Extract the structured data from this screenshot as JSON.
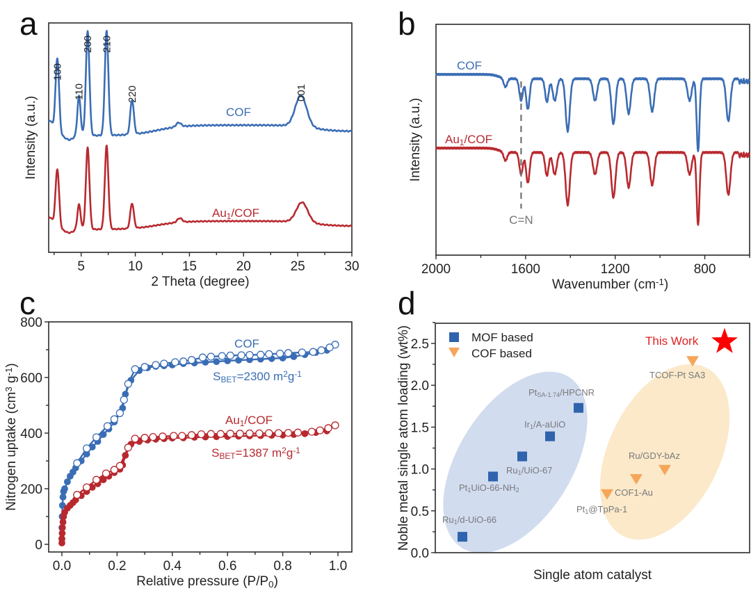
{
  "figure": {
    "panel_letters": [
      "a",
      "b",
      "c",
      "d"
    ],
    "colors": {
      "cof_blue": "#3a6db5",
      "au_red": "#b8292f",
      "mof_square": "#2f63ad",
      "cof_triangle": "#f5a65b",
      "mof_ellipse": "#c9d6ec",
      "cof_ellipse": "#fbe7c4",
      "star": "#ff0000",
      "cn_line": "#707070"
    }
  },
  "chart_data": [
    {
      "panel": "a",
      "type": "line",
      "title": "",
      "xlabel": "2 Theta (degree)",
      "ylabel": "Intensity (a.u.)",
      "xlim": [
        2,
        30
      ],
      "xticks": [
        5,
        10,
        15,
        20,
        25,
        30
      ],
      "xtick_labels": [
        "5",
        "10",
        "15",
        "20",
        "25",
        "30"
      ],
      "y_ticks_shown": false,
      "series": [
        {
          "name": "COF",
          "label": "COF",
          "baseline": 0.55,
          "peaks": [
            {
              "x": 2.8,
              "height": 0.72,
              "width": 0.22
            },
            {
              "x": 4.8,
              "height": 0.38,
              "width": 0.2
            },
            {
              "x": 5.6,
              "height": 1.0,
              "width": 0.22
            },
            {
              "x": 7.35,
              "height": 1.0,
              "width": 0.22
            },
            {
              "x": 9.7,
              "height": 0.33,
              "width": 0.22
            },
            {
              "x": 14.0,
              "height": 0.04,
              "width": 0.3
            },
            {
              "x": 25.3,
              "height": 0.3,
              "width": 0.7
            }
          ]
        },
        {
          "name": "Au1/COF",
          "label": "Au₁/COF",
          "baseline": 0.08,
          "peaks": [
            {
              "x": 2.8,
              "height": 0.7,
              "width": 0.22
            },
            {
              "x": 4.8,
              "height": 0.3,
              "width": 0.2
            },
            {
              "x": 5.6,
              "height": 0.98,
              "width": 0.22
            },
            {
              "x": 7.35,
              "height": 1.0,
              "width": 0.22
            },
            {
              "x": 9.7,
              "height": 0.3,
              "width": 0.22
            },
            {
              "x": 14.1,
              "height": 0.05,
              "width": 0.3
            },
            {
              "x": 25.4,
              "height": 0.24,
              "width": 0.7
            }
          ]
        }
      ],
      "annotations": [
        {
          "text": "100",
          "x": 2.8
        },
        {
          "text": "110",
          "x": 4.8
        },
        {
          "text": "200",
          "x": 5.6
        },
        {
          "text": "210",
          "x": 7.35
        },
        {
          "text": "220",
          "x": 9.7
        },
        {
          "text": "001",
          "x": 25.3
        }
      ]
    },
    {
      "panel": "b",
      "type": "line",
      "title": "",
      "xlabel": "Wavenumber (cm⁻¹)",
      "ylabel": "Intensity (a.u.)",
      "xlim": [
        2000,
        600
      ],
      "xticks": [
        2000,
        1600,
        1200,
        800
      ],
      "xtick_labels": [
        "2000",
        "1600",
        "1200",
        "800"
      ],
      "y_ticks_shown": false,
      "series": [
        {
          "name": "COF",
          "label": "COF"
        },
        {
          "name": "Au1/COF",
          "label": "Au₁/COF"
        }
      ],
      "absorption_bands": [
        {
          "x": 1690,
          "depth": 0.12
        },
        {
          "x": 1620,
          "depth": 0.3
        },
        {
          "x": 1590,
          "depth": 0.42
        },
        {
          "x": 1505,
          "depth": 0.32
        },
        {
          "x": 1470,
          "depth": 0.3
        },
        {
          "x": 1412,
          "depth": 0.72
        },
        {
          "x": 1290,
          "depth": 0.3
        },
        {
          "x": 1208,
          "depth": 0.62
        },
        {
          "x": 1140,
          "depth": 0.48
        },
        {
          "x": 1035,
          "depth": 0.45
        },
        {
          "x": 868,
          "depth": 0.3
        },
        {
          "x": 830,
          "depth": 1.0
        },
        {
          "x": 695,
          "depth": 0.58
        }
      ],
      "annotations": [
        {
          "text": "C=N",
          "x": 1620,
          "style": "dashed vertical line"
        }
      ]
    },
    {
      "panel": "c",
      "type": "scatter",
      "title": "",
      "xlabel": "Relative pressure (P/P₀)",
      "ylabel": "Nitrogen uptake (cm³ g⁻¹)",
      "xlim": [
        -0.05,
        1.05
      ],
      "ylim": [
        -25,
        800
      ],
      "xticks": [
        0.0,
        0.2,
        0.4,
        0.6,
        0.8,
        1.0
      ],
      "xtick_labels": [
        "0.0",
        "0.2",
        "0.4",
        "0.6",
        "0.8",
        "1.0"
      ],
      "yticks": [
        0,
        200,
        400,
        600,
        800
      ],
      "ytick_labels": [
        "0",
        "200",
        "400",
        "600",
        "800"
      ],
      "series": [
        {
          "name": "COF adsorption",
          "marker": "filled-circle",
          "x": [
            0.0,
            0.0,
            0.001,
            0.002,
            0.004,
            0.006,
            0.01,
            0.02,
            0.03,
            0.04,
            0.05,
            0.07,
            0.09,
            0.11,
            0.13,
            0.15,
            0.17,
            0.19,
            0.21,
            0.22,
            0.23,
            0.25,
            0.28,
            0.31,
            0.34,
            0.37,
            0.4,
            0.44,
            0.48,
            0.52,
            0.56,
            0.6,
            0.64,
            0.68,
            0.72,
            0.76,
            0.8,
            0.84,
            0.88,
            0.92,
            0.96
          ],
          "y": [
            20,
            60,
            100,
            140,
            170,
            190,
            200,
            225,
            245,
            260,
            275,
            300,
            325,
            350,
            370,
            395,
            415,
            440,
            470,
            490,
            540,
            590,
            625,
            635,
            640,
            642,
            645,
            650,
            652,
            655,
            657,
            660,
            662,
            664,
            666,
            668,
            670,
            675,
            682,
            690,
            698
          ]
        },
        {
          "name": "COF desorption",
          "marker": "open-circle",
          "x": [
            0.99,
            0.97,
            0.94,
            0.91,
            0.87,
            0.82,
            0.79,
            0.75,
            0.72,
            0.68,
            0.65,
            0.61,
            0.58,
            0.54,
            0.51,
            0.47,
            0.44,
            0.41,
            0.37,
            0.34,
            0.3,
            0.265,
            0.24,
            0.225,
            0.21,
            0.19,
            0.165,
            0.125,
            0.09,
            0.055
          ],
          "y": [
            718,
            708,
            698,
            692,
            690,
            688,
            686,
            684,
            682,
            681,
            680,
            679,
            677,
            675,
            672,
            663,
            658,
            655,
            650,
            645,
            638,
            630,
            577,
            520,
            472,
            450,
            425,
            385,
            345,
            292
          ]
        },
        {
          "name": "Au1/COF adsorption",
          "marker": "filled-circle",
          "x": [
            0.0,
            0.0,
            0.001,
            0.002,
            0.004,
            0.006,
            0.01,
            0.02,
            0.03,
            0.04,
            0.05,
            0.07,
            0.09,
            0.11,
            0.13,
            0.15,
            0.17,
            0.19,
            0.21,
            0.22,
            0.23,
            0.25,
            0.28,
            0.31,
            0.34,
            0.37,
            0.4,
            0.44,
            0.48,
            0.52,
            0.56,
            0.6,
            0.64,
            0.68,
            0.72,
            0.76,
            0.8,
            0.84,
            0.88,
            0.92,
            0.96
          ],
          "y": [
            5,
            20,
            40,
            60,
            80,
            100,
            115,
            130,
            140,
            150,
            160,
            175,
            190,
            205,
            218,
            232,
            245,
            258,
            270,
            285,
            320,
            360,
            370,
            375,
            378,
            380,
            382,
            383,
            385,
            386,
            387,
            388,
            389,
            390,
            391,
            392,
            393,
            395,
            398,
            402,
            408
          ]
        },
        {
          "name": "Au1/COF desorption",
          "marker": "open-circle",
          "x": [
            0.99,
            0.965,
            0.935,
            0.905,
            0.855,
            0.82,
            0.785,
            0.75,
            0.715,
            0.68,
            0.645,
            0.61,
            0.575,
            0.54,
            0.505,
            0.47,
            0.435,
            0.405,
            0.365,
            0.33,
            0.3,
            0.265,
            0.24,
            0.21,
            0.19,
            0.16,
            0.125,
            0.09,
            0.055
          ],
          "y": [
            428,
            418,
            410,
            405,
            402,
            401,
            400,
            400,
            399,
            399,
            398,
            398,
            397,
            397,
            396,
            393,
            390,
            390,
            388,
            386,
            383,
            380,
            348,
            282,
            268,
            255,
            232,
            205,
            178
          ]
        }
      ],
      "annotations": [
        {
          "text": "COF",
          "color": "blue"
        },
        {
          "text": "S_BET=2300 m²g⁻¹",
          "color": "blue"
        },
        {
          "text": "Au₁/COF",
          "color": "red"
        },
        {
          "text": "S_BET=1387 m²g⁻¹",
          "color": "red"
        }
      ]
    },
    {
      "panel": "d",
      "type": "scatter",
      "title": "",
      "xlabel": "Single atom catalyst",
      "ylabel": "Noble metal single atom loading (wt%)",
      "ylim": [
        0.0,
        2.75
      ],
      "xlim": [
        0,
        11
      ],
      "yticks": [
        0.0,
        0.5,
        1.0,
        1.5,
        2.0,
        2.5
      ],
      "ytick_labels": [
        "0.0",
        "0.5",
        "1.0",
        "1.5",
        "2.0",
        "2.5"
      ],
      "x_ticks_shown": false,
      "legend": {
        "placement": "top-left",
        "entries": [
          {
            "label": "MOF based",
            "marker": "square"
          },
          {
            "label": "COF based",
            "marker": "down-triangle"
          }
        ]
      },
      "series": [
        {
          "name": "MOF based",
          "marker": "square",
          "points": [
            {
              "x": 1,
              "y": 0.19,
              "label": "Ru₁/d-UiO-66"
            },
            {
              "x": 2,
              "y": 0.91,
              "label": "Pt₁UiO-66-NH₂"
            },
            {
              "x": 3,
              "y": 1.15,
              "label": "Ru₁/UiO-67"
            },
            {
              "x": 4,
              "y": 1.39,
              "label": "Ir₁/A-aUiO"
            },
            {
              "x": 5,
              "y": 1.73,
              "label": "Pt_SA-1.74/HPCNR"
            }
          ]
        },
        {
          "name": "COF based",
          "marker": "down-triangle",
          "points": [
            {
              "x": 6,
              "y": 0.7,
              "label": "Pt₁@TpPa-1"
            },
            {
              "x": 7,
              "y": 0.88,
              "label": "COF1-Au"
            },
            {
              "x": 8,
              "y": 0.99,
              "label": "Ru/GDY-bAz"
            },
            {
              "x": 9,
              "y": 2.29,
              "label": "TCOF-Pt SA3"
            }
          ]
        },
        {
          "name": "This Work",
          "marker": "star",
          "points": [
            {
              "x": 10,
              "y": 2.52,
              "label": "This Work"
            }
          ]
        }
      ]
    }
  ]
}
